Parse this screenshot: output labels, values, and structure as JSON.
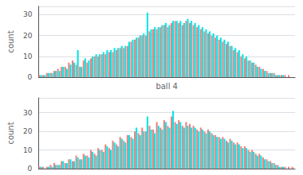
{
  "chart_data": [
    {
      "type": "bar",
      "xlabel": "ball 4",
      "ylabel": "count",
      "categories": [
        null,
        null,
        null,
        null,
        null,
        null,
        null,
        null,
        null,
        null,
        null,
        null,
        null,
        null,
        null,
        null,
        null,
        null,
        null,
        null,
        null,
        null,
        null,
        null,
        null,
        null,
        null,
        null,
        null,
        null,
        null,
        null,
        null,
        null,
        null,
        null,
        null,
        null,
        null,
        null,
        null,
        null,
        null,
        null,
        null,
        null,
        null,
        null,
        null,
        null,
        null,
        null,
        null,
        null,
        null,
        null,
        null,
        null,
        null,
        null,
        null,
        null,
        null,
        null,
        null,
        null,
        null,
        null,
        null,
        null
      ],
      "series": [
        {
          "color": "#F08080",
          "values": [
            1,
            1,
            2,
            2,
            3,
            4,
            5,
            5,
            7,
            8,
            6,
            5,
            8,
            7,
            9,
            10,
            10,
            11,
            11,
            12,
            12,
            13,
            14,
            14,
            15,
            17,
            18,
            19,
            20,
            20,
            22,
            23,
            23,
            24,
            25,
            24,
            26,
            27,
            26,
            25,
            27,
            26,
            25,
            24,
            23,
            22,
            21,
            20,
            19,
            18,
            17,
            16,
            15,
            13,
            12,
            10,
            9,
            8,
            7,
            6,
            5,
            4,
            3,
            2,
            2,
            1,
            1,
            1,
            1,
            0
          ]
        },
        {
          "color": "#00E5E5",
          "values": [
            1,
            1,
            2,
            2,
            3,
            3,
            5,
            4,
            6,
            7,
            13,
            5,
            9,
            8,
            10,
            11,
            11,
            12,
            13,
            13,
            14,
            14,
            15,
            15,
            17,
            18,
            19,
            20,
            21,
            31,
            23,
            24,
            24,
            25,
            26,
            25,
            27,
            27,
            27,
            26,
            28,
            27,
            26,
            25,
            24,
            23,
            22,
            21,
            20,
            19,
            18,
            17,
            15,
            14,
            13,
            11,
            10,
            8,
            7,
            5,
            4,
            3,
            2,
            2,
            1,
            1,
            1,
            0,
            0,
            0
          ]
        }
      ],
      "ylim": [
        0,
        34
      ],
      "yticks": [
        0,
        10,
        20,
        30
      ],
      "grid": true,
      "tick_labels": "y"
    },
    {
      "type": "bar",
      "ylabel": "count",
      "categories": [
        null,
        null,
        null,
        null,
        null,
        null,
        null,
        null,
        null,
        null,
        null,
        null,
        null,
        null,
        null,
        null,
        null,
        null,
        null,
        null,
        null,
        null,
        null,
        null,
        null,
        null,
        null,
        null,
        null,
        null,
        null,
        null,
        null,
        null,
        null,
        null,
        null,
        null,
        null,
        null,
        null,
        null,
        null,
        null,
        null,
        null,
        null,
        null,
        null,
        null,
        null,
        null,
        null,
        null,
        null,
        null,
        null,
        null,
        null,
        null,
        null,
        null,
        null,
        null,
        null,
        null,
        null,
        null,
        null,
        null
      ],
      "series": [
        {
          "color": "#F08080",
          "values": [
            1,
            1,
            1,
            2,
            3,
            2,
            4,
            3,
            5,
            4,
            7,
            5,
            8,
            7,
            10,
            8,
            11,
            10,
            13,
            11,
            15,
            13,
            17,
            15,
            18,
            17,
            20,
            19,
            22,
            20,
            23,
            21,
            25,
            22,
            26,
            23,
            28,
            25,
            26,
            23,
            25,
            24,
            23,
            21,
            22,
            20,
            21,
            19,
            18,
            17,
            17,
            15,
            16,
            14,
            14,
            12,
            12,
            10,
            10,
            8,
            8,
            6,
            5,
            4,
            3,
            2,
            1,
            1,
            1,
            1
          ]
        },
        {
          "color": "#00E5E5",
          "values": [
            1,
            0,
            1,
            1,
            2,
            2,
            4,
            3,
            5,
            4,
            6,
            5,
            7,
            6,
            9,
            7,
            10,
            9,
            12,
            10,
            14,
            12,
            16,
            14,
            18,
            16,
            22,
            18,
            20,
            28,
            21,
            19,
            23,
            21,
            25,
            22,
            31,
            24,
            25,
            22,
            23,
            22,
            22,
            20,
            21,
            19,
            20,
            18,
            17,
            16,
            16,
            14,
            15,
            13,
            13,
            11,
            11,
            9,
            9,
            7,
            7,
            5,
            4,
            3,
            2,
            1,
            1,
            0,
            0,
            0
          ]
        }
      ],
      "ylim": [
        0,
        38
      ],
      "yticks": [
        0,
        10,
        20,
        30
      ],
      "grid": true,
      "tick_labels": "y"
    }
  ]
}
